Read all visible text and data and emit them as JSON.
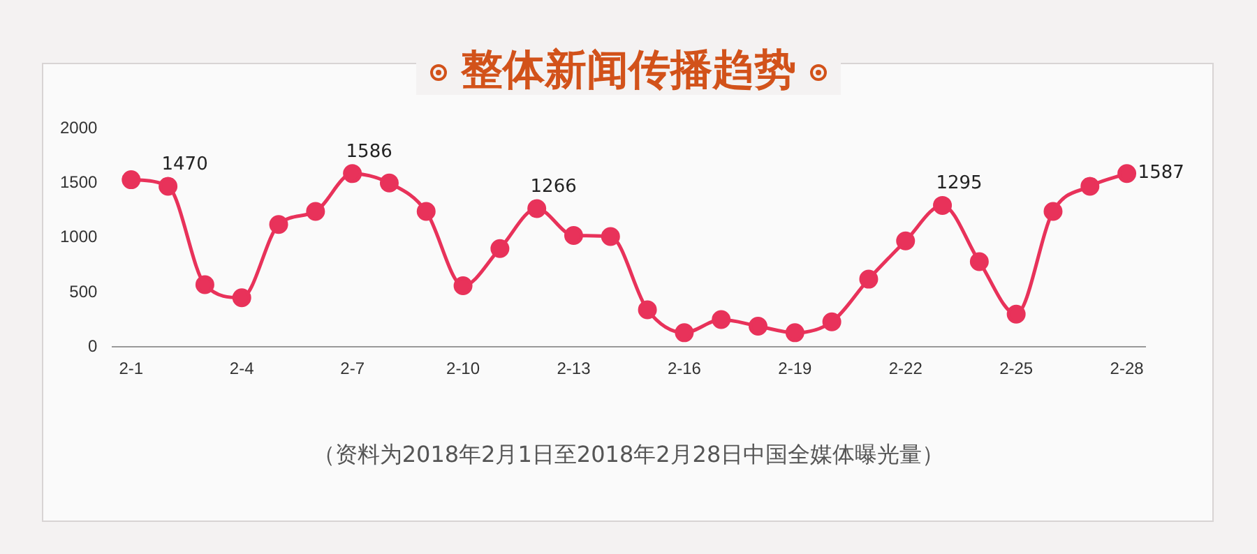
{
  "chart_data": {
    "type": "line",
    "title": "整体新闻传播趋势",
    "categories": [
      "2-1",
      null,
      null,
      "2-4",
      null,
      null,
      "2-7",
      null,
      null,
      "2-10",
      null,
      null,
      "2-13",
      null,
      null,
      "2-16",
      null,
      null,
      "2-19",
      null,
      null,
      "2-22",
      null,
      null,
      "2-25",
      null,
      null,
      "2-28"
    ],
    "series": [
      {
        "color": "#e8325a",
        "values": [
          1530,
          1470,
          570,
          450,
          1120,
          1240,
          1586,
          1500,
          1240,
          560,
          900,
          1266,
          1020,
          1010,
          340,
          130,
          250,
          190,
          130,
          230,
          620,
          970,
          1295,
          780,
          300,
          1240,
          1470,
          1587
        ],
        "value_labels": [
          null,
          "1470",
          null,
          null,
          null,
          null,
          "1586",
          null,
          null,
          null,
          null,
          "1266",
          null,
          null,
          null,
          null,
          null,
          null,
          null,
          null,
          null,
          null,
          "1295",
          null,
          null,
          null,
          null,
          "1587"
        ]
      }
    ],
    "ylim": [
      0,
      2000
    ],
    "yticks": [
      0,
      500,
      1000,
      1500,
      2000
    ],
    "grid": false,
    "legend": false,
    "marker": "circle",
    "line_style": "solid",
    "annotations": [
      "（资料为2018年2月1日至2018年2月28日中国全媒体曝光量）"
    ]
  }
}
